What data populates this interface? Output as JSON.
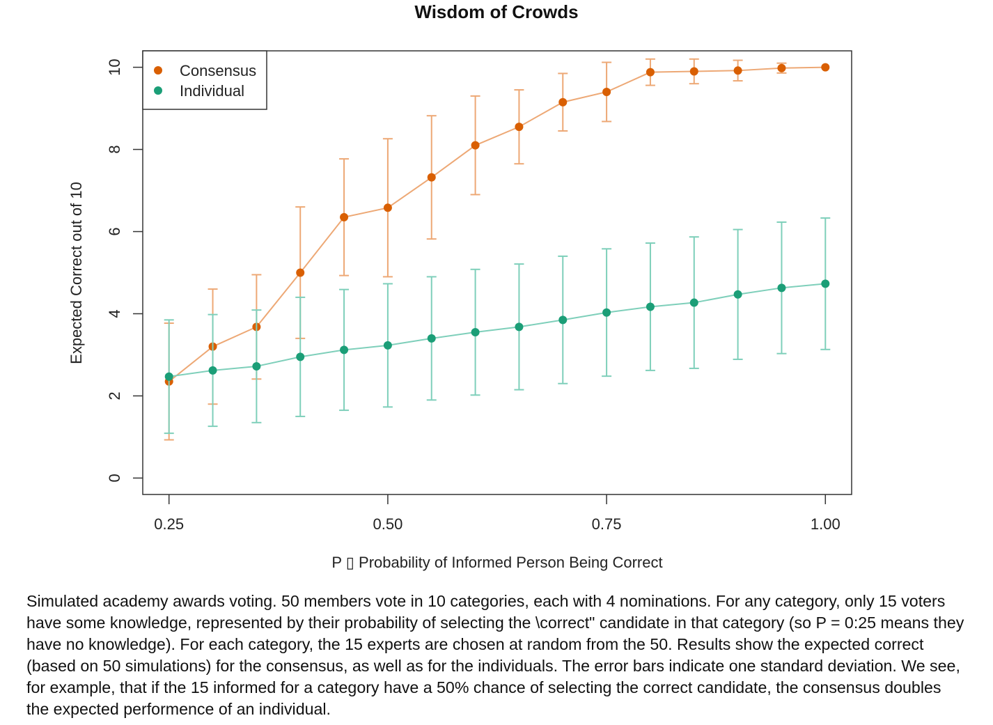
{
  "chart_data": {
    "type": "line",
    "title": "Wisdom of Crowds",
    "xlabel": "P ▯ Probability of Informed Person Being Correct",
    "ylabel": "Expected Correct out of 10",
    "xlim": [
      0.22,
      1.03
    ],
    "ylim": [
      -0.4,
      10.4
    ],
    "xticks": [
      0.25,
      0.5,
      0.75,
      1.0
    ],
    "xtick_labels": [
      "0.25",
      "0.50",
      "0.75",
      "1.00"
    ],
    "yticks": [
      0,
      2,
      4,
      6,
      8,
      10
    ],
    "ytick_labels": [
      "0",
      "2",
      "4",
      "6",
      "8",
      "10"
    ],
    "grid": false,
    "legend_position": "top-left",
    "x": [
      0.25,
      0.3,
      0.35,
      0.4,
      0.45,
      0.5,
      0.55,
      0.6,
      0.65,
      0.7,
      0.75,
      0.8,
      0.85,
      0.9,
      0.95,
      1.0
    ],
    "series": [
      {
        "name": "Consensus",
        "color": "#D95F02",
        "bar_color": "#EDA875",
        "values": [
          2.35,
          3.2,
          3.68,
          5.0,
          6.35,
          6.58,
          7.32,
          8.1,
          8.55,
          9.15,
          9.4,
          9.88,
          9.9,
          9.92,
          9.98,
          10.0
        ],
        "err": [
          1.42,
          1.4,
          1.27,
          1.6,
          1.42,
          1.68,
          1.5,
          1.2,
          0.9,
          0.7,
          0.72,
          0.32,
          0.3,
          0.25,
          0.12,
          0.0
        ]
      },
      {
        "name": "Individual",
        "color": "#1B9E77",
        "bar_color": "#7ECFBA",
        "values": [
          2.47,
          2.62,
          2.72,
          2.95,
          3.12,
          3.23,
          3.4,
          3.55,
          3.68,
          3.85,
          4.03,
          4.17,
          4.27,
          4.47,
          4.63,
          4.73
        ],
        "err": [
          1.38,
          1.36,
          1.37,
          1.45,
          1.47,
          1.5,
          1.5,
          1.53,
          1.53,
          1.55,
          1.55,
          1.55,
          1.6,
          1.58,
          1.6,
          1.6
        ]
      }
    ]
  },
  "caption": "Simulated academy awards voting. 50 members vote in 10 categories, each with 4 nominations. For any category, only 15 voters have some knowledge, represented by their probability of selecting the \\correct\" candidate in that category (so P = 0:25 means they have no knowledge). For each category, the 15 experts are chosen at random from the 50. Results show the expected correct (based on 50 simulations) for the consensus, as well as for the individuals. The error bars indicate one standard deviation. We see, for example, that if the 15 informed for a category have a 50% chance of selecting the correct candidate, the consensus doubles the expected performence of an individual."
}
